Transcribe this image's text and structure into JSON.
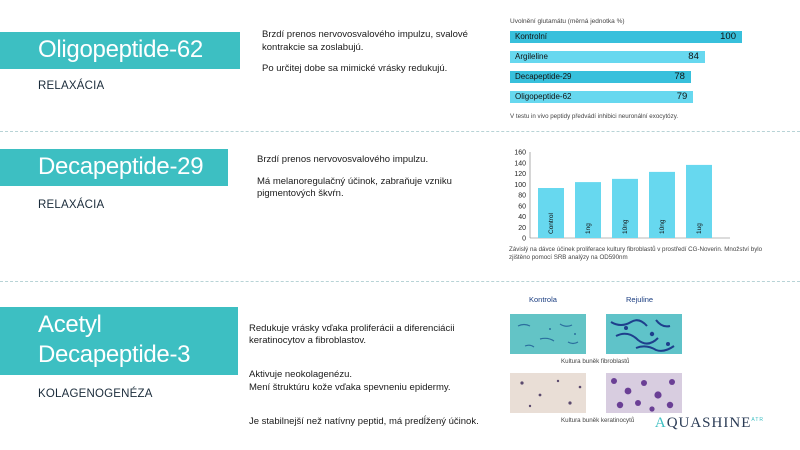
{
  "sections": [
    {
      "title": "Oligopeptide-62",
      "category": "RELAXÁCIA",
      "desc": [
        "Brzdí prenos nervovosvalového impulzu, svalové kontrakcie sa zoslabujú.",
        "Po určitej dobe sa mimické vrásky redukujú."
      ]
    },
    {
      "title": "Decapeptide-29",
      "category": "RELAXÁCIA",
      "desc": [
        "Brzdí prenos nervovosvalového impulzu.",
        "Má melanoregulačný účinok, zabraňuje vzniku pigmentových škvŕn."
      ]
    },
    {
      "title_line1": "Acetyl",
      "title_line2": "Decapeptide-3",
      "category": "KOLAGENOGENÉZA",
      "desc": [
        "Redukuje vrásky vďaka proliferácii a diferenciácii keratinocytov a fibroblastov.",
        "Aktivuje neokolagenézu.\nMení štruktúru kože vďaka spevneniu epidermy.",
        "Je stabilnejší než natívny peptid, má predĺžený účinok."
      ]
    }
  ],
  "chart_data": [
    {
      "type": "bar",
      "orientation": "horizontal",
      "title": "Uvolnění glutamátu (měrná jednotka %)",
      "categories": [
        "Kontrolní",
        "Argileline",
        "Decapeptide-29",
        "Oligopeptide-62"
      ],
      "values": [
        100,
        84,
        78,
        79
      ],
      "xlim": [
        0,
        100
      ],
      "note": "V testu in vivo peptidy předvádí inhibici neuronální exocytózy."
    },
    {
      "type": "bar",
      "categories": [
        "Control",
        "1ng",
        "10ng",
        "10ng",
        "1ug"
      ],
      "values": [
        93,
        104,
        110,
        123,
        136
      ],
      "ylim": [
        0,
        160
      ],
      "yticks": [
        0,
        20,
        40,
        60,
        80,
        100,
        120,
        140,
        160
      ],
      "note": "Závislý na dávce účinek proliferace kultury fibroblastů v prostředí CG-Noverin. Množství bylo zjištěno pomocí SRB analýzy na OD590nm"
    }
  ],
  "images": {
    "col_left": "Kontrola",
    "col_right": "Rejuline",
    "caption_top": "Kultura buněk fibroblastů",
    "caption_bottom": "Kultura buněk keratinocytů"
  },
  "logo": {
    "text": "QUASHINE",
    "first": "A",
    "mark": "ATR"
  },
  "colors": {
    "accent": "#3dbfc2",
    "bar_light": "#67d8ef",
    "bar_dark": "#38c0dc"
  }
}
